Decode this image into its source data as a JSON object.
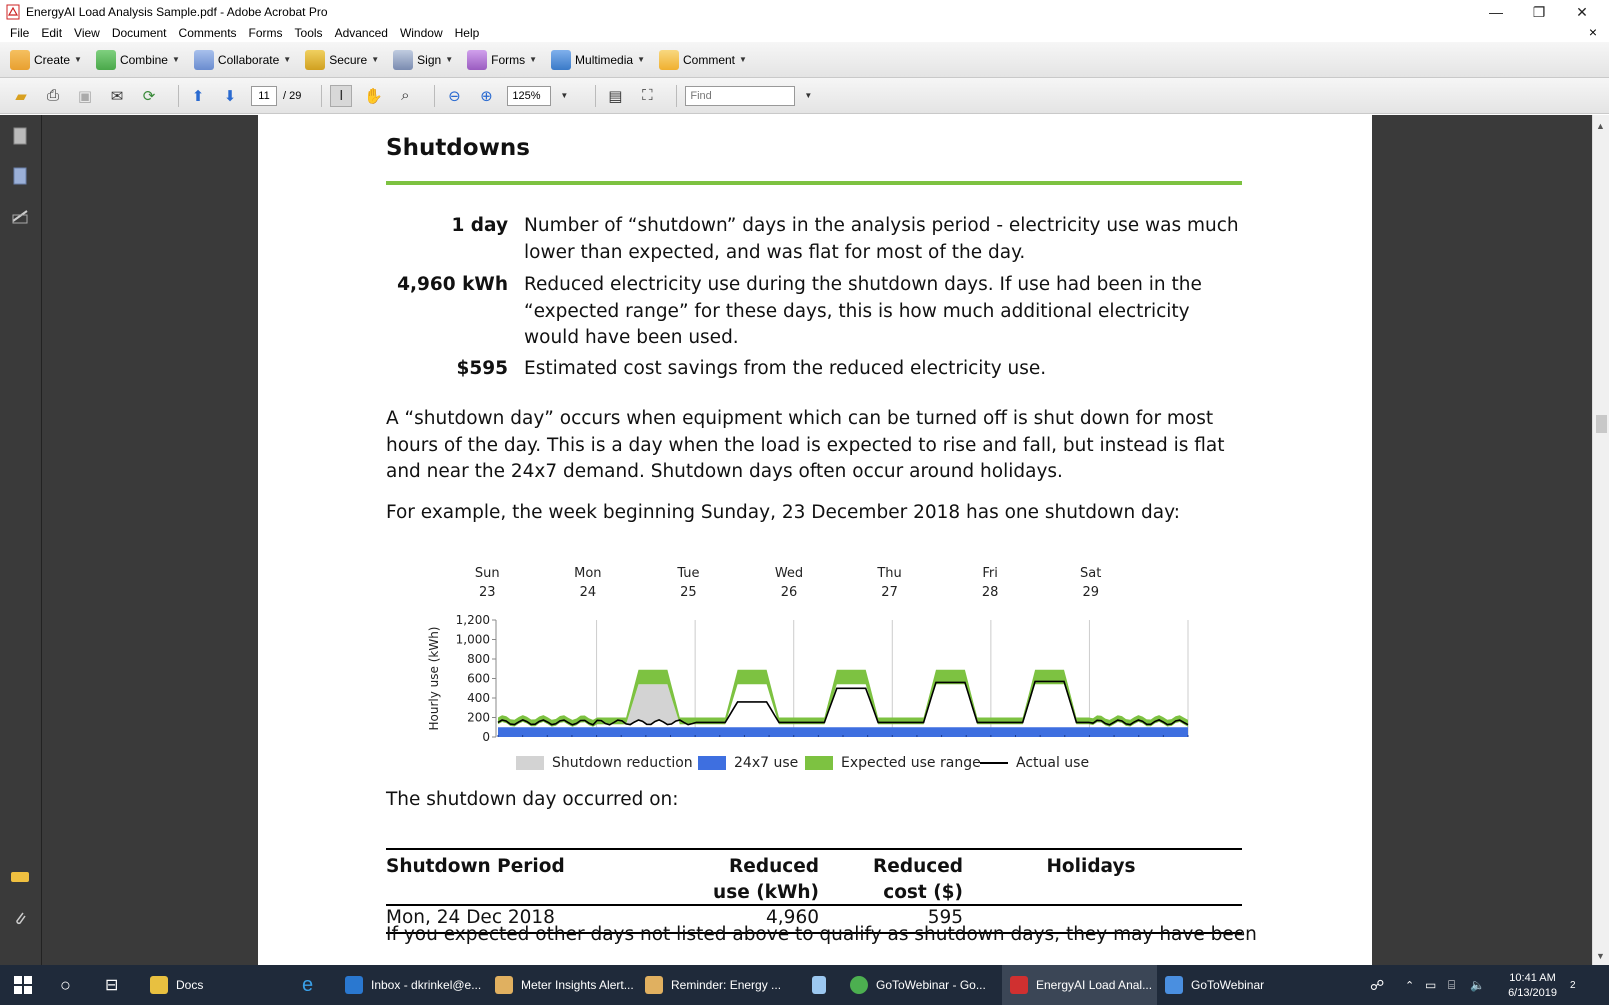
{
  "window": {
    "title": "EnergyAI Load Analysis Sample.pdf - Adobe Acrobat Pro",
    "controls": {
      "minimize": "—",
      "restore": "❐",
      "close": "✕"
    }
  },
  "menu": {
    "items": [
      "File",
      "Edit",
      "View",
      "Document",
      "Comments",
      "Forms",
      "Tools",
      "Advanced",
      "Window",
      "Help"
    ],
    "close_doc": "×"
  },
  "toolbar1": {
    "buttons": [
      {
        "label": "Create",
        "icon": "create-icon",
        "color": "#e8a030"
      },
      {
        "label": "Combine",
        "icon": "combine-icon",
        "color": "#4aa84a"
      },
      {
        "label": "Collaborate",
        "icon": "collaborate-icon",
        "color": "#6a8ccf"
      },
      {
        "label": "Secure",
        "icon": "lock-icon",
        "color": "#d0a020"
      },
      {
        "label": "Sign",
        "icon": "pen-icon",
        "color": "#7a8bb0"
      },
      {
        "label": "Forms",
        "icon": "forms-icon",
        "color": "#9a5cc0"
      },
      {
        "label": "Multimedia",
        "icon": "multimedia-icon",
        "color": "#3a7ac8"
      },
      {
        "label": "Comment",
        "icon": "comment-icon",
        "color": "#f0b030"
      }
    ]
  },
  "toolbar2": {
    "page_current": "11",
    "page_total": "/ 29",
    "zoom": "125%",
    "find_placeholder": "Find"
  },
  "document": {
    "heading": "Shutdowns",
    "metrics": [
      {
        "value": "1 day",
        "desc": "Number of “shutdown” days in the analysis period - electricity use was much lower than expected, and was flat for most of the day."
      },
      {
        "value": "4,960 kWh",
        "desc": "Reduced electricity use during the shutdown days. If use had been in the “expected range” for these days, this is how much additional electricity would have been used."
      },
      {
        "value": "$595",
        "desc": "Estimated cost savings from the reduced electricity use."
      }
    ],
    "para1": "A “shutdown day” occurs when equipment which can be turned off is shut down for most hours of the day. This is a day when the load is expected to rise and fall, but instead is flat and near the 24x7 demand. Shutdown days often occur around holidays.",
    "para2": "For example, the week beginning Sunday, 23 December 2018 has one shutdown day:",
    "para3": "The shutdown day occurred on:",
    "para4": "If you expected other days not listed above to qualify as shutdown days, they may have been",
    "legend": [
      {
        "label": "Shutdown reduction",
        "color": "#d3d3d3",
        "kind": "swatch"
      },
      {
        "label": "24x7 use",
        "color": "#3e6fe0",
        "kind": "swatch"
      },
      {
        "label": "Expected use range",
        "color": "#7dc241",
        "kind": "swatch"
      },
      {
        "label": "Actual use",
        "color": "#000000",
        "kind": "line"
      }
    ],
    "table": {
      "headers": [
        "Shutdown Period",
        "Reduced use (kWh)",
        "Reduced cost ($)",
        "Holidays"
      ],
      "rows": [
        [
          "Mon, 24 Dec 2018",
          "4,960",
          "595",
          ""
        ]
      ]
    }
  },
  "chart_data": {
    "type": "area",
    "title": "",
    "xlabel": "",
    "ylabel": "Hourly use (kWh)",
    "ylim": [
      0,
      1200
    ],
    "yticks": [
      "0",
      "200",
      "400",
      "600",
      "800",
      "1,000",
      "1,200"
    ],
    "days": [
      {
        "dow": "Sun",
        "date": "23"
      },
      {
        "dow": "Mon",
        "date": "24"
      },
      {
        "dow": "Tue",
        "date": "25"
      },
      {
        "dow": "Wed",
        "date": "26"
      },
      {
        "dow": "Thu",
        "date": "27"
      },
      {
        "dow": "Fri",
        "date": "28"
      },
      {
        "dow": "Sat",
        "date": "29"
      }
    ],
    "grid": "vertical day separators",
    "series": [
      {
        "name": "24x7 use",
        "constant": 100
      },
      {
        "name": "Expected use range",
        "daily_low": [
          150,
          540,
          540,
          540,
          540,
          540,
          150
        ],
        "daily_high": [
          200,
          690,
          690,
          690,
          690,
          690,
          200
        ]
      },
      {
        "name": "Actual use",
        "daily_peak": [
          200,
          190,
          360,
          500,
          560,
          570,
          200
        ]
      },
      {
        "name": "Shutdown reduction",
        "day": "Mon 24",
        "peak_gap": 460
      }
    ],
    "series_colors": {
      "24x7": "#3e6fe0",
      "expected": "#7dc241",
      "actual": "#000000",
      "shutdown": "#d3d3d3"
    }
  },
  "taskbar": {
    "items": [
      {
        "label": "Docs",
        "color": "#e8c040"
      },
      {
        "label": "Inbox - dkrinkel@e...",
        "color": "#2a78d0"
      },
      {
        "label": "Meter Insights Alert...",
        "color": "#e0b060"
      },
      {
        "label": "Reminder: Energy ...",
        "color": "#e0b060"
      },
      {
        "label": "GoToWebinar - Go...",
        "color": "#4caf50"
      },
      {
        "label": "EnergyAI Load Anal...",
        "color": "#d03030"
      },
      {
        "label": "GoToWebinar",
        "color": "#4a8fe0"
      }
    ],
    "time": "10:41 AM",
    "date": "6/13/2019",
    "notifications": "2"
  }
}
